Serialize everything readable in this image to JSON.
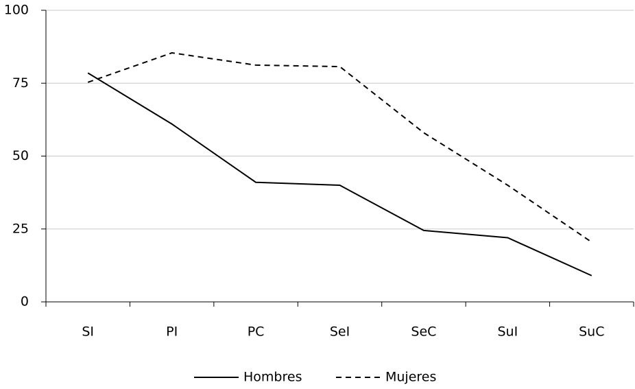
{
  "chart_data": {
    "type": "line",
    "categories": [
      "SI",
      "PI",
      "PC",
      "SeI",
      "SeC",
      "SuI",
      "SuC"
    ],
    "series": [
      {
        "name": "Hombres",
        "color": "#000000",
        "dash": "solid",
        "values": [
          78.5,
          61,
          41,
          40,
          24.5,
          22,
          9
        ]
      },
      {
        "name": "Mujeres",
        "color": "#000000",
        "dash": "dashed",
        "values": [
          75.3,
          85.4,
          81.2,
          80.7,
          58,
          40,
          20.5
        ]
      }
    ],
    "ylim": [
      0,
      100
    ],
    "yticks": [
      0,
      25,
      50,
      75,
      100
    ],
    "grid": true,
    "legend": "bottom"
  }
}
